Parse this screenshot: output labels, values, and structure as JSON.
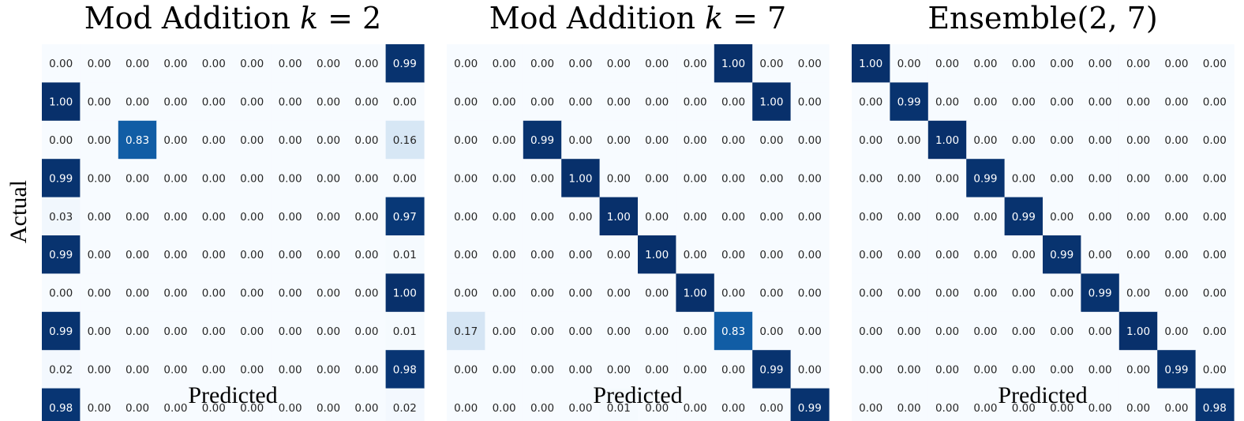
{
  "figure": {
    "ylabel": "Actual"
  },
  "chart_data": [
    {
      "type": "heatmap",
      "title": "Mod Addition k = 2",
      "title_plain": "Mod Addition ",
      "title_math": "k = 2",
      "xlabel": "Predicted",
      "ylabel": "Actual",
      "colormap": "Blues",
      "grid": false,
      "value_format": "2 decimals",
      "matrix": [
        [
          0.0,
          0.0,
          0.0,
          0.0,
          0.0,
          0.0,
          0.0,
          0.0,
          0.0,
          0.99
        ],
        [
          1.0,
          0.0,
          0.0,
          0.0,
          0.0,
          0.0,
          0.0,
          0.0,
          0.0,
          0.0
        ],
        [
          0.0,
          0.0,
          0.83,
          0.0,
          0.0,
          0.0,
          0.0,
          0.0,
          0.0,
          0.16
        ],
        [
          0.99,
          0.0,
          0.0,
          0.0,
          0.0,
          0.0,
          0.0,
          0.0,
          0.0,
          0.0
        ],
        [
          0.03,
          0.0,
          0.0,
          0.0,
          0.0,
          0.0,
          0.0,
          0.0,
          0.0,
          0.97
        ],
        [
          0.99,
          0.0,
          0.0,
          0.0,
          0.0,
          0.0,
          0.0,
          0.0,
          0.0,
          0.01
        ],
        [
          0.0,
          0.0,
          0.0,
          0.0,
          0.0,
          0.0,
          0.0,
          0.0,
          0.0,
          1.0
        ],
        [
          0.99,
          0.0,
          0.0,
          0.0,
          0.0,
          0.0,
          0.0,
          0.0,
          0.0,
          0.01
        ],
        [
          0.02,
          0.0,
          0.0,
          0.0,
          0.0,
          0.0,
          0.0,
          0.0,
          0.0,
          0.98
        ],
        [
          0.98,
          0.0,
          0.0,
          0.0,
          0.0,
          0.0,
          0.0,
          0.0,
          0.0,
          0.02
        ]
      ]
    },
    {
      "type": "heatmap",
      "title": "Mod Addition k = 7",
      "title_plain": "Mod Addition ",
      "title_math": "k = 7",
      "xlabel": "Predicted",
      "ylabel": "",
      "colormap": "Blues",
      "grid": false,
      "value_format": "2 decimals",
      "matrix": [
        [
          0.0,
          0.0,
          0.0,
          0.0,
          0.0,
          0.0,
          0.0,
          1.0,
          0.0,
          0.0
        ],
        [
          0.0,
          0.0,
          0.0,
          0.0,
          0.0,
          0.0,
          0.0,
          0.0,
          1.0,
          0.0
        ],
        [
          0.0,
          0.0,
          0.99,
          0.0,
          0.0,
          0.0,
          0.0,
          0.0,
          0.0,
          0.0
        ],
        [
          0.0,
          0.0,
          0.0,
          1.0,
          0.0,
          0.0,
          0.0,
          0.0,
          0.0,
          0.0
        ],
        [
          0.0,
          0.0,
          0.0,
          0.0,
          1.0,
          0.0,
          0.0,
          0.0,
          0.0,
          0.0
        ],
        [
          0.0,
          0.0,
          0.0,
          0.0,
          0.0,
          1.0,
          0.0,
          0.0,
          0.0,
          0.0
        ],
        [
          0.0,
          0.0,
          0.0,
          0.0,
          0.0,
          0.0,
          1.0,
          0.0,
          0.0,
          0.0
        ],
        [
          0.17,
          0.0,
          0.0,
          0.0,
          0.0,
          0.0,
          0.0,
          0.83,
          0.0,
          0.0
        ],
        [
          0.0,
          0.0,
          0.0,
          0.0,
          0.0,
          0.0,
          0.0,
          0.0,
          0.99,
          0.0
        ],
        [
          0.0,
          0.0,
          0.0,
          0.0,
          0.01,
          0.0,
          0.0,
          0.0,
          0.0,
          0.99
        ]
      ]
    },
    {
      "type": "heatmap",
      "title": "Ensemble(2, 7)",
      "title_plain": "Ensemble(2, 7)",
      "title_math": "",
      "xlabel": "Predicted",
      "ylabel": "",
      "colormap": "Blues",
      "grid": false,
      "value_format": "2 decimals",
      "matrix": [
        [
          1.0,
          0.0,
          0.0,
          0.0,
          0.0,
          0.0,
          0.0,
          0.0,
          0.0,
          0.0
        ],
        [
          0.0,
          0.99,
          0.0,
          0.0,
          0.0,
          0.0,
          0.0,
          0.0,
          0.0,
          0.0
        ],
        [
          0.0,
          0.0,
          1.0,
          0.0,
          0.0,
          0.0,
          0.0,
          0.0,
          0.0,
          0.0
        ],
        [
          0.0,
          0.0,
          0.0,
          0.99,
          0.0,
          0.0,
          0.0,
          0.0,
          0.0,
          0.0
        ],
        [
          0.0,
          0.0,
          0.0,
          0.0,
          0.99,
          0.0,
          0.0,
          0.0,
          0.0,
          0.0
        ],
        [
          0.0,
          0.0,
          0.0,
          0.0,
          0.0,
          0.99,
          0.0,
          0.0,
          0.0,
          0.0
        ],
        [
          0.0,
          0.0,
          0.0,
          0.0,
          0.0,
          0.0,
          0.99,
          0.0,
          0.0,
          0.0
        ],
        [
          0.0,
          0.0,
          0.0,
          0.0,
          0.0,
          0.0,
          0.0,
          1.0,
          0.0,
          0.0
        ],
        [
          0.0,
          0.0,
          0.0,
          0.0,
          0.0,
          0.0,
          0.0,
          0.0,
          0.99,
          0.0
        ],
        [
          0.0,
          0.0,
          0.0,
          0.0,
          0.0,
          0.0,
          0.0,
          0.0,
          0.0,
          0.98
        ]
      ]
    }
  ]
}
